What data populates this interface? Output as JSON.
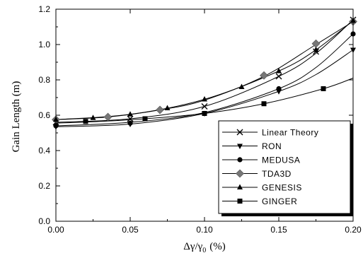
{
  "chart_data": {
    "type": "line",
    "xlabel": "Δγ/γ",
    "xlabel_sub": "0",
    "xlabel_unit": "(%)",
    "ylabel": "Gain Length (m)",
    "xlim": [
      0.0,
      0.2
    ],
    "ylim": [
      0.0,
      1.2
    ],
    "x_ticks": [
      "0.00",
      "0.05",
      "0.10",
      "0.15",
      "0.20"
    ],
    "y_ticks": [
      "0.0",
      "0.2",
      "0.4",
      "0.6",
      "0.8",
      "1.0",
      "1.2"
    ],
    "x_tick_values": [
      0.0,
      0.05,
      0.1,
      0.15,
      0.2
    ],
    "y_tick_values": [
      0.0,
      0.2,
      0.4,
      0.6,
      0.8,
      1.0,
      1.2
    ],
    "grid": false,
    "legend_position": "bottom-right",
    "series": [
      {
        "name": "Linear Theory",
        "marker": "x",
        "curve": [
          [
            0.0,
            0.56
          ],
          [
            0.05,
            0.58
          ],
          [
            0.1,
            0.65
          ],
          [
            0.15,
            0.82
          ],
          [
            0.175,
            0.95
          ],
          [
            0.2,
            1.14
          ]
        ],
        "points": [
          [
            0.0,
            0.56
          ],
          [
            0.05,
            0.58
          ],
          [
            0.1,
            0.65
          ],
          [
            0.15,
            0.82
          ],
          [
            0.175,
            0.96
          ],
          [
            0.2,
            1.14
          ]
        ]
      },
      {
        "name": "RON",
        "marker": "triangle-down",
        "curve": [
          [
            0.0,
            0.535
          ],
          [
            0.05,
            0.55
          ],
          [
            0.1,
            0.61
          ],
          [
            0.15,
            0.735
          ],
          [
            0.175,
            0.83
          ],
          [
            0.2,
            0.97
          ]
        ],
        "points": [
          [
            0.0,
            0.535
          ],
          [
            0.05,
            0.55
          ],
          [
            0.1,
            0.61
          ],
          [
            0.15,
            0.735
          ],
          [
            0.2,
            0.97
          ]
        ]
      },
      {
        "name": "MEDUSA",
        "marker": "circle",
        "curve": [
          [
            0.0,
            0.54
          ],
          [
            0.05,
            0.56
          ],
          [
            0.1,
            0.615
          ],
          [
            0.15,
            0.75
          ],
          [
            0.175,
            0.87
          ],
          [
            0.2,
            1.06
          ]
        ],
        "points": [
          [
            0.0,
            0.54
          ],
          [
            0.05,
            0.555
          ],
          [
            0.1,
            0.61
          ],
          [
            0.15,
            0.75
          ],
          [
            0.2,
            1.06
          ]
        ]
      },
      {
        "name": "TDA3D",
        "marker": "diamond",
        "curve": [
          [
            0.0,
            0.575
          ],
          [
            0.035,
            0.59
          ],
          [
            0.07,
            0.63
          ],
          [
            0.1,
            0.685
          ],
          [
            0.14,
            0.82
          ],
          [
            0.175,
            1.0
          ],
          [
            0.2,
            1.13
          ]
        ],
        "points": [
          [
            0.0,
            0.575
          ],
          [
            0.035,
            0.59
          ],
          [
            0.07,
            0.63
          ],
          [
            0.14,
            0.825
          ],
          [
            0.175,
            1.005
          ],
          [
            0.2,
            1.13
          ]
        ]
      },
      {
        "name": "GENESIS",
        "marker": "triangle-up",
        "curve": [
          [
            0.0,
            0.575
          ],
          [
            0.05,
            0.605
          ],
          [
            0.1,
            0.69
          ],
          [
            0.15,
            0.85
          ],
          [
            0.175,
            0.97
          ],
          [
            0.2,
            1.135
          ]
        ],
        "points": [
          [
            0.0,
            0.575
          ],
          [
            0.025,
            0.585
          ],
          [
            0.05,
            0.605
          ],
          [
            0.075,
            0.64
          ],
          [
            0.1,
            0.69
          ],
          [
            0.125,
            0.76
          ],
          [
            0.15,
            0.85
          ],
          [
            0.175,
            0.97
          ],
          [
            0.2,
            1.135
          ]
        ]
      },
      {
        "name": "GINGER",
        "marker": "square",
        "curve": [
          [
            0.0,
            0.555
          ],
          [
            0.03,
            0.565
          ],
          [
            0.06,
            0.58
          ],
          [
            0.1,
            0.61
          ],
          [
            0.14,
            0.665
          ],
          [
            0.18,
            0.75
          ],
          [
            0.2,
            0.81
          ]
        ],
        "points": [
          [
            0.02,
            0.565
          ],
          [
            0.06,
            0.58
          ],
          [
            0.1,
            0.61
          ],
          [
            0.14,
            0.665
          ],
          [
            0.18,
            0.75
          ]
        ]
      }
    ]
  }
}
